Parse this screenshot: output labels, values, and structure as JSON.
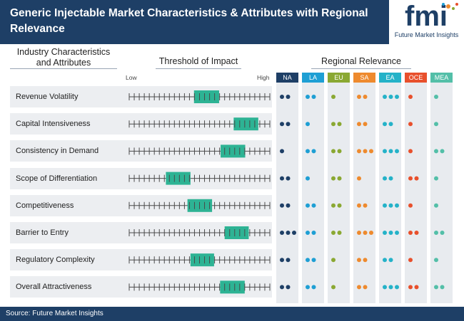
{
  "header": {
    "title": "Generic Injectable Market Characteristics & Attributes with Regional Relevance",
    "logo_letters": "fmi",
    "logo_text": "Future Market Insights"
  },
  "columns": {
    "attributes": "Industry Characteristics and Attributes",
    "threshold": "Threshold of Impact",
    "regional": "Regional Relevance",
    "low": "Low",
    "high": "High"
  },
  "colors": {
    "header": "#1e3f66",
    "bar": "#2db394",
    "regions": [
      "#1e3f66",
      "#1e9fd4",
      "#8aa832",
      "#ee8a2e",
      "#24b2c8",
      "#e8502c",
      "#53bfa8"
    ]
  },
  "chart_data": {
    "type": "table",
    "scale": {
      "min": 0,
      "max": 28
    },
    "regions": [
      "NA",
      "LA",
      "EU",
      "SA",
      "EA",
      "OCE",
      "MEA"
    ],
    "rows": [
      {
        "label": "Revenue Volatility",
        "start": 12.9,
        "end": 17.9,
        "dots": [
          2,
          2,
          1,
          2,
          3,
          1,
          1
        ]
      },
      {
        "label": "Capital Intensiveness",
        "start": 20.8,
        "end": 25.7,
        "dots": [
          2,
          1,
          2,
          2,
          2,
          1,
          1
        ]
      },
      {
        "label": "Consistency in Demand",
        "start": 18.2,
        "end": 23.1,
        "dots": [
          1,
          2,
          2,
          3,
          3,
          1,
          2
        ]
      },
      {
        "label": "Scope of Differentiation",
        "start": 7.3,
        "end": 12.2,
        "dots": [
          2,
          1,
          2,
          1,
          2,
          2,
          1
        ]
      },
      {
        "label": "Competitiveness",
        "start": 11.6,
        "end": 16.5,
        "dots": [
          2,
          2,
          2,
          2,
          3,
          1,
          1
        ]
      },
      {
        "label": "Barrier to Entry",
        "start": 19.0,
        "end": 23.8,
        "dots": [
          3,
          2,
          2,
          3,
          3,
          2,
          2
        ]
      },
      {
        "label": "Regulatory Complexity",
        "start": 12.2,
        "end": 16.9,
        "dots": [
          2,
          2,
          1,
          2,
          2,
          1,
          1
        ]
      },
      {
        "label": "Overall Attractiveness",
        "start": 18.1,
        "end": 23.0,
        "dots": [
          2,
          2,
          1,
          2,
          3,
          2,
          2
        ]
      }
    ]
  },
  "footer": {
    "source": "Source: Future Market Insights"
  }
}
